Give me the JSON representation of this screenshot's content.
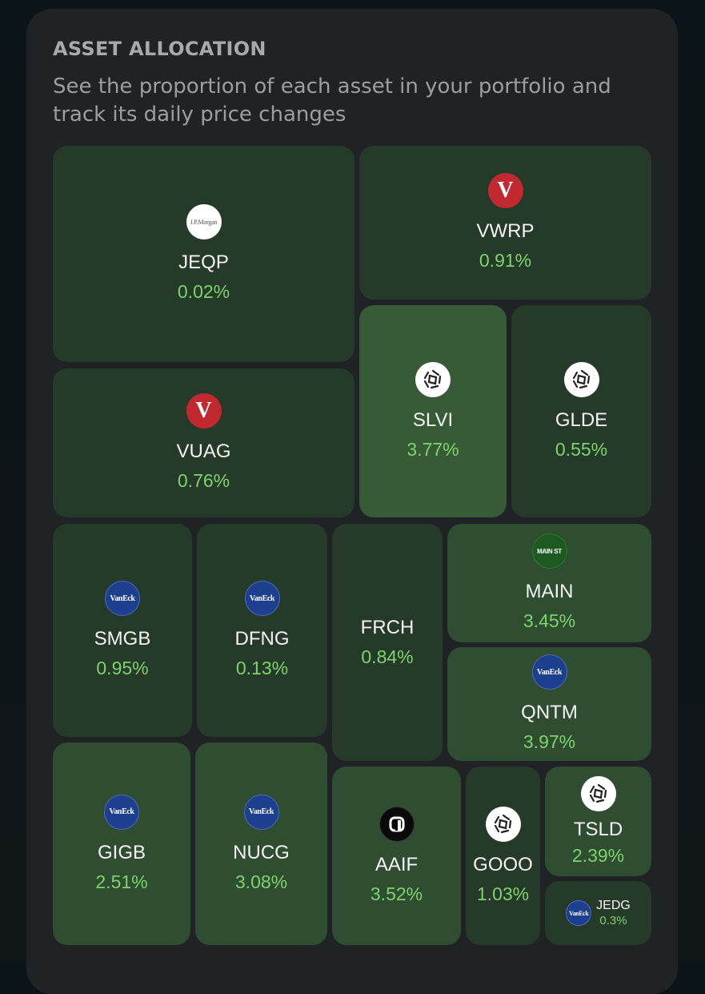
{
  "header": {
    "title": "ASSET ALLOCATION",
    "subtitle": "See the proportion of each asset in your portfolio and track its daily price changes"
  },
  "colors": {
    "positive_change": "#7dd46c",
    "tile_dark": "#263a29",
    "tile_mid": "#2f4d31",
    "tile_light": "#375b36",
    "card_bg": "#1f2326"
  },
  "assets": [
    {
      "ticker": "JEQP",
      "change": "0.02%",
      "logo": "jpmorgan-logo",
      "logo_text": "J.P.Morgan"
    },
    {
      "ticker": "VWRP",
      "change": "0.91%",
      "logo": "vanguard-logo",
      "logo_text": "V"
    },
    {
      "ticker": "VUAG",
      "change": "0.76%",
      "logo": "vanguard-logo",
      "logo_text": "V"
    },
    {
      "ticker": "SLVI",
      "change": "3.77%",
      "logo": "wisdomtree-logo"
    },
    {
      "ticker": "GLDE",
      "change": "0.55%",
      "logo": "wisdomtree-logo"
    },
    {
      "ticker": "SMGB",
      "change": "0.95%",
      "logo": "vaneck-logo",
      "logo_text": "VanEck"
    },
    {
      "ticker": "DFNG",
      "change": "0.13%",
      "logo": "vaneck-logo",
      "logo_text": "VanEck"
    },
    {
      "ticker": "FRCH",
      "change": "0.84%"
    },
    {
      "ticker": "MAIN",
      "change": "3.45%",
      "logo": "mainst-logo",
      "logo_text": "MAIN ST"
    },
    {
      "ticker": "QNTM",
      "change": "3.97%",
      "logo": "vaneck-logo",
      "logo_text": "VanEck"
    },
    {
      "ticker": "GIGB",
      "change": "2.51%",
      "logo": "vaneck-logo",
      "logo_text": "VanEck"
    },
    {
      "ticker": "NUCG",
      "change": "3.08%",
      "logo": "vaneck-logo",
      "logo_text": "VanEck"
    },
    {
      "ticker": "AAIF",
      "change": "3.52%",
      "logo": "aaif-logo"
    },
    {
      "ticker": "GOOO",
      "change": "1.03%",
      "logo": "wisdomtree-logo"
    },
    {
      "ticker": "TSLD",
      "change": "2.39%",
      "logo": "wisdomtree-logo"
    },
    {
      "ticker": "JEDG",
      "change": "0.3%",
      "logo": "vaneck-logo",
      "logo_text": "VanEck"
    }
  ]
}
